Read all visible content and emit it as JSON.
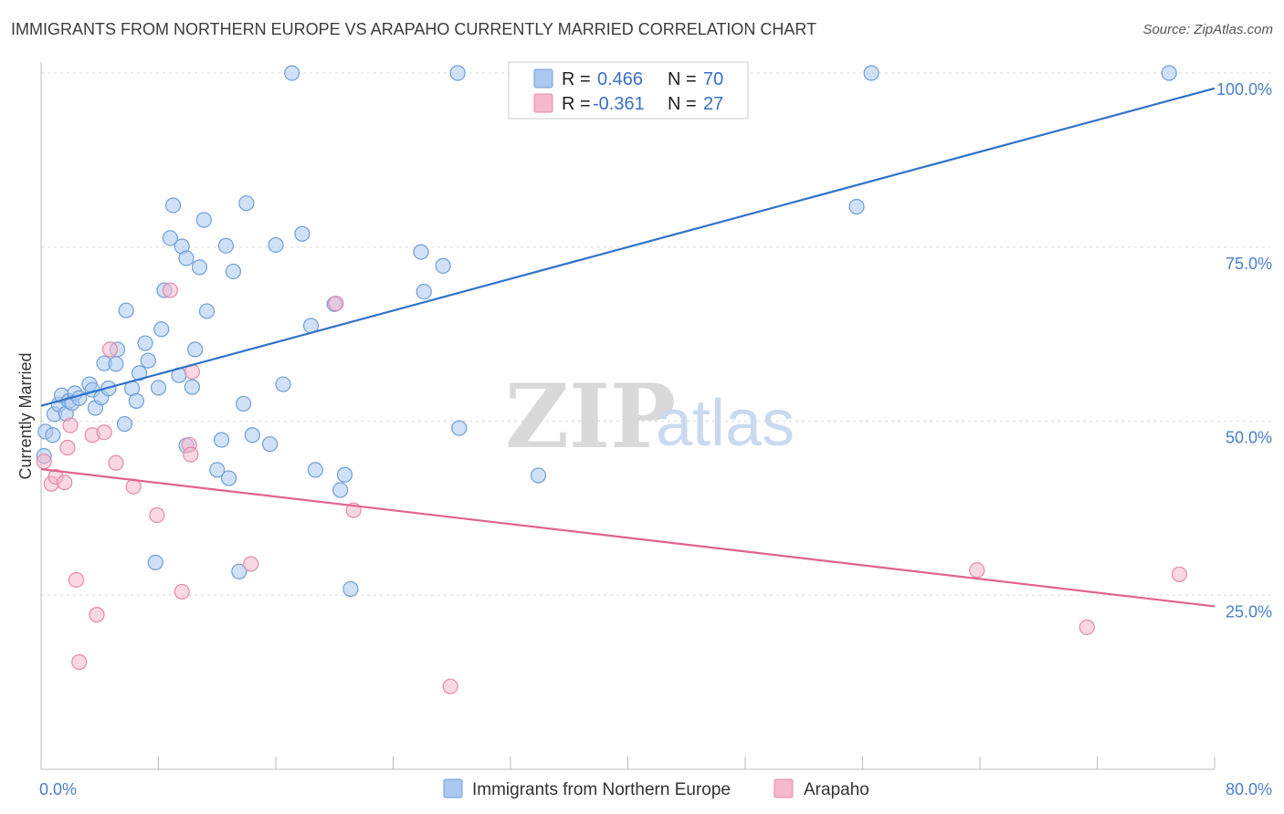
{
  "header": {
    "title": "IMMIGRANTS FROM NORTHERN EUROPE VS ARAPAHO CURRENTLY MARRIED CORRELATION CHART",
    "source": "Source: ZipAtlas.com"
  },
  "watermark": {
    "zip": "ZIP",
    "atlas": "atlas"
  },
  "colors": {
    "blue_fill": "#aac8f0",
    "blue_stroke": "#6f9fd8",
    "blue_line": "#2f72c8",
    "pink_fill": "#f5b8cc",
    "pink_stroke": "#e58aa8",
    "pink_line": "#e0628f",
    "grid": "#d9d9d9",
    "axis_label": "#4a7fc9"
  },
  "legend_box": {
    "r_label": "R =",
    "n_label": "N =",
    "rows": [
      {
        "series": "blue",
        "r": "0.466",
        "n": "70"
      },
      {
        "series": "pink",
        "r": "-0.361",
        "n": "27"
      }
    ]
  },
  "bottom_legend": [
    "Immigrants from Northern Europe",
    "Arapaho"
  ],
  "chart_data": {
    "type": "scatter",
    "xlabel": "",
    "ylabel": "Currently Married",
    "xlim": [
      0,
      80
    ],
    "ylim": [
      0,
      100
    ],
    "x_tick_labels": [
      {
        "value": 0,
        "label": "0.0%"
      },
      {
        "value": 80,
        "label": "80.0%"
      }
    ],
    "y_tick_labels": [
      {
        "value": 25,
        "label": "25.0%"
      },
      {
        "value": 50,
        "label": "50.0%"
      },
      {
        "value": 75,
        "label": "75.0%"
      },
      {
        "value": 100,
        "label": "100.0%"
      }
    ],
    "grid": true,
    "legend": "top-center",
    "series": [
      {
        "name": "Immigrants from Northern Europe",
        "color": "blue",
        "trend": {
          "x": [
            0,
            80
          ],
          "y": [
            52.2,
            97.8
          ]
        },
        "points": [
          [
            0.3,
            48.5
          ],
          [
            0.8,
            48.0
          ],
          [
            0.9,
            51.0
          ],
          [
            1.2,
            52.4
          ],
          [
            1.4,
            53.7
          ],
          [
            1.7,
            51.1
          ],
          [
            1.9,
            52.9
          ],
          [
            2.1,
            52.6
          ],
          [
            2.3,
            54.0
          ],
          [
            2.6,
            53.3
          ],
          [
            3.3,
            55.3
          ],
          [
            3.5,
            54.5
          ],
          [
            3.7,
            51.9
          ],
          [
            4.1,
            53.4
          ],
          [
            4.3,
            58.3
          ],
          [
            4.6,
            54.7
          ],
          [
            5.1,
            58.2
          ],
          [
            5.2,
            60.3
          ],
          [
            5.7,
            49.6
          ],
          [
            5.8,
            65.9
          ],
          [
            6.2,
            54.7
          ],
          [
            6.5,
            52.9
          ],
          [
            6.7,
            56.9
          ],
          [
            7.1,
            61.2
          ],
          [
            7.3,
            58.7
          ],
          [
            7.8,
            29.7
          ],
          [
            8.0,
            54.8
          ],
          [
            8.2,
            63.2
          ],
          [
            8.4,
            68.8
          ],
          [
            8.8,
            76.3
          ],
          [
            9.0,
            81.0
          ],
          [
            9.4,
            56.6
          ],
          [
            9.6,
            75.1
          ],
          [
            9.9,
            73.4
          ],
          [
            9.9,
            46.5
          ],
          [
            10.3,
            54.9
          ],
          [
            10.5,
            60.3
          ],
          [
            10.8,
            72.1
          ],
          [
            11.1,
            78.9
          ],
          [
            11.3,
            65.8
          ],
          [
            12.0,
            43.0
          ],
          [
            12.3,
            47.3
          ],
          [
            12.6,
            75.2
          ],
          [
            12.8,
            41.8
          ],
          [
            13.1,
            71.5
          ],
          [
            13.5,
            28.4
          ],
          [
            13.8,
            52.5
          ],
          [
            14.0,
            81.3
          ],
          [
            14.4,
            48.0
          ],
          [
            15.6,
            46.7
          ],
          [
            16.0,
            75.3
          ],
          [
            16.5,
            55.3
          ],
          [
            17.1,
            100.0
          ],
          [
            17.8,
            76.9
          ],
          [
            18.4,
            63.7
          ],
          [
            18.7,
            43.0
          ],
          [
            20.4,
            40.1
          ],
          [
            20.7,
            42.3
          ],
          [
            21.1,
            25.9
          ],
          [
            25.9,
            74.3
          ],
          [
            26.1,
            68.6
          ],
          [
            27.4,
            72.3
          ],
          [
            28.4,
            100.0
          ],
          [
            28.5,
            49.0
          ],
          [
            33.9,
            42.2
          ],
          [
            55.6,
            80.8
          ],
          [
            56.6,
            100.0
          ],
          [
            76.9,
            100.0
          ],
          [
            0.2,
            45.0
          ],
          [
            20.0,
            66.8
          ]
        ]
      },
      {
        "name": "Arapaho",
        "color": "pink",
        "trend": {
          "x": [
            0,
            80
          ],
          "y": [
            43.1,
            23.4
          ]
        },
        "points": [
          [
            0.2,
            44.2
          ],
          [
            0.7,
            41.0
          ],
          [
            1.0,
            42.0
          ],
          [
            1.6,
            41.2
          ],
          [
            1.8,
            46.2
          ],
          [
            2.0,
            49.4
          ],
          [
            2.4,
            27.2
          ],
          [
            2.6,
            15.4
          ],
          [
            3.5,
            48.0
          ],
          [
            3.8,
            22.2
          ],
          [
            4.3,
            48.4
          ],
          [
            4.7,
            60.3
          ],
          [
            5.1,
            44.0
          ],
          [
            6.3,
            40.6
          ],
          [
            7.9,
            36.5
          ],
          [
            8.8,
            68.8
          ],
          [
            9.6,
            25.5
          ],
          [
            10.1,
            46.6
          ],
          [
            10.2,
            45.2
          ],
          [
            10.3,
            57.1
          ],
          [
            14.3,
            29.5
          ],
          [
            20.1,
            66.9
          ],
          [
            21.3,
            37.2
          ],
          [
            27.9,
            11.9
          ],
          [
            63.8,
            28.6
          ],
          [
            71.3,
            20.4
          ],
          [
            77.6,
            28.0
          ]
        ]
      }
    ]
  }
}
